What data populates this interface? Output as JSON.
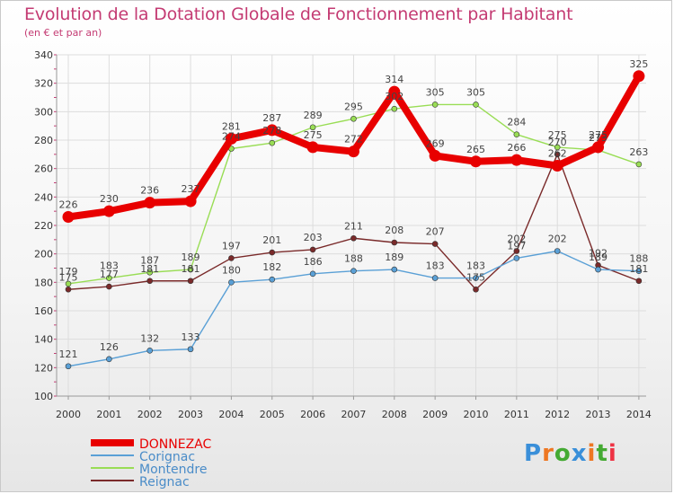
{
  "title": "Evolution de la Dotation Globale de Fonctionnement par Habitant",
  "subtitle": "(en € et par an)",
  "logo_text": "Proxiti",
  "chart_data": {
    "type": "line",
    "categories": [
      "2000",
      "2001",
      "2002",
      "2003",
      "2004",
      "2005",
      "2006",
      "2007",
      "2008",
      "2009",
      "2010",
      "2011",
      "2012",
      "2013",
      "2014"
    ],
    "ylim": [
      100,
      340
    ],
    "yticks": [
      100,
      120,
      140,
      160,
      180,
      200,
      220,
      240,
      260,
      280,
      300,
      320,
      340
    ],
    "grid": true,
    "legend_position": "bottom-left",
    "series": [
      {
        "name": "DONNEZAC",
        "color": "#e80000",
        "values": [
          226,
          230,
          236,
          237,
          281,
          287,
          275,
          272,
          314,
          269,
          265,
          266,
          262,
          275,
          325
        ],
        "labels": [
          "226",
          "230",
          "236",
          "237",
          "281",
          "287",
          "275",
          "272",
          "314",
          "269",
          "265",
          "266",
          "262",
          "275",
          "325"
        ]
      },
      {
        "name": "Corignac",
        "color": "#5aa0d6",
        "values": [
          121,
          126,
          132,
          133,
          180,
          182,
          186,
          188,
          189,
          183,
          183,
          197,
          202,
          189,
          188
        ],
        "labels": [
          "121",
          "126",
          "132",
          "133",
          "180",
          "182",
          "186",
          "188",
          "189",
          "183",
          "183",
          "197",
          "202",
          "189",
          "188"
        ]
      },
      {
        "name": "Montendre",
        "color": "#99dd55",
        "values": [
          179,
          183,
          187,
          189,
          274,
          278,
          289,
          295,
          302,
          305,
          305,
          284,
          275,
          273,
          263
        ],
        "labels": [
          "179",
          "183",
          "187",
          "189",
          "274",
          "278",
          "289",
          "295",
          "302",
          "305",
          "305",
          "284",
          "275",
          "273",
          "263"
        ]
      },
      {
        "name": "Reignac",
        "color": "#7a2a2a",
        "values": [
          175,
          177,
          181,
          181,
          197,
          201,
          203,
          211,
          208,
          207,
          175,
          202,
          270,
          192,
          181
        ],
        "labels": [
          "175",
          "177",
          "181",
          "181",
          "197",
          "201",
          "203",
          "211",
          "208",
          "207",
          "175",
          "202",
          "270",
          "192",
          "181"
        ]
      }
    ]
  }
}
